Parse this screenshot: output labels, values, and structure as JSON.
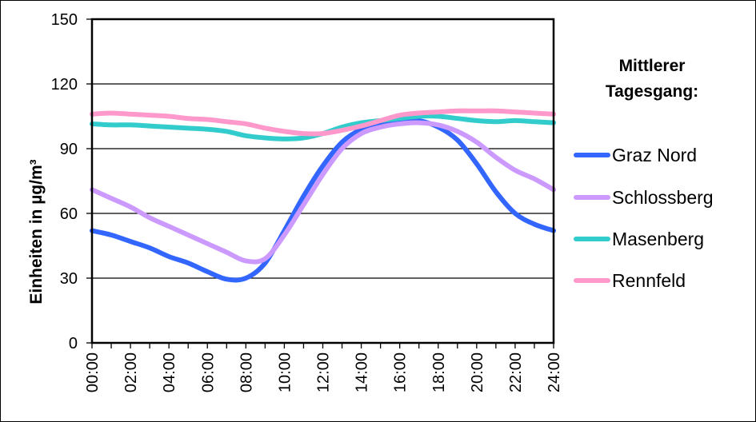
{
  "chart_data": {
    "type": "line",
    "title": "",
    "xlabel": "",
    "ylabel": "Einheiten in µg/m³",
    "ylim": [
      0,
      150
    ],
    "yticks": [
      0,
      30,
      60,
      90,
      120,
      150
    ],
    "xlim": [
      0,
      24
    ],
    "xtick_labels": [
      "00:00",
      "02:00",
      "04:00",
      "06:00",
      "08:00",
      "10:00",
      "12:00",
      "14:00",
      "16:00",
      "18:00",
      "20:00",
      "22:00",
      "24:00"
    ],
    "grid": "horizontal",
    "legend_title": "Mittlerer Tagesgang:",
    "legend_position": "right",
    "x": [
      0,
      1,
      2,
      3,
      4,
      5,
      6,
      7,
      8,
      9,
      10,
      11,
      12,
      13,
      14,
      15,
      16,
      17,
      18,
      19,
      20,
      21,
      22,
      23,
      24
    ],
    "series": [
      {
        "name": "Graz Nord",
        "color": "#3366ff",
        "values": [
          52,
          50,
          47,
          44,
          40,
          37,
          33,
          29.5,
          30,
          37,
          52,
          68,
          82,
          93,
          99,
          102,
          103,
          103,
          100,
          94,
          83,
          70,
          60,
          55,
          52
        ]
      },
      {
        "name": "Schlossberg",
        "color": "#cc99ff",
        "values": [
          71,
          67,
          63,
          58,
          54,
          50,
          46,
          42,
          38,
          39,
          50,
          64,
          78,
          90,
          97,
          100,
          101.5,
          102,
          101,
          98,
          93,
          86,
          80,
          76,
          71
        ]
      },
      {
        "name": "Masenberg",
        "color": "#33cccc",
        "values": [
          101.5,
          101,
          101,
          100.5,
          100,
          99.5,
          99,
          98,
          96,
          95,
          94.5,
          95,
          97,
          100,
          102,
          103,
          104,
          105,
          105,
          104,
          103,
          102.5,
          103,
          102.5,
          102
        ]
      },
      {
        "name": "Rennfeld",
        "color": "#ff99cc",
        "values": [
          106,
          106.5,
          106,
          105.5,
          105,
          104,
          103.5,
          102.5,
          101.5,
          99.5,
          98,
          97,
          97,
          98.5,
          100.5,
          103,
          105.5,
          106.5,
          107,
          107.5,
          107.5,
          107.5,
          107,
          106.5,
          106
        ]
      }
    ]
  },
  "legend": {
    "title_line1": "Mittlerer",
    "title_line2": "Tagesgang:",
    "items": [
      "Graz Nord",
      "Schlossberg",
      "Masenberg",
      "Rennfeld"
    ]
  },
  "axis": {
    "ylabel": "Einheiten in µg/m³",
    "yticks": [
      "0",
      "30",
      "60",
      "90",
      "120",
      "150"
    ],
    "xticks": [
      "00:00",
      "02:00",
      "04:00",
      "06:00",
      "08:00",
      "10:00",
      "12:00",
      "14:00",
      "16:00",
      "18:00",
      "20:00",
      "22:00",
      "24:00"
    ]
  }
}
